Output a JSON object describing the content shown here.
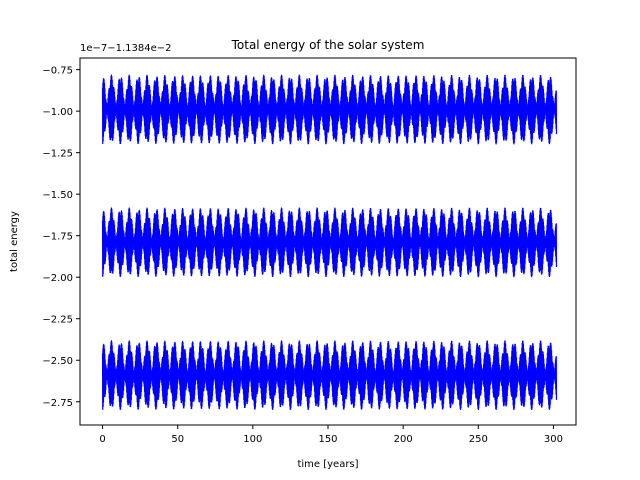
{
  "chart_data": {
    "type": "line",
    "title": "Total energy of the solar system",
    "xlabel": "time [years]",
    "ylabel": "total energy",
    "offset_text": "1e−7−1.1384e−2",
    "xlim": [
      -15,
      315
    ],
    "ylim": [
      -2.89,
      -0.68
    ],
    "xticks": [
      0,
      50,
      100,
      150,
      200,
      250,
      300
    ],
    "yticks": [
      -2.75,
      -2.5,
      -2.25,
      -2.0,
      -1.75,
      -1.5,
      -1.25,
      -1.0,
      -0.75
    ],
    "ytick_labels": [
      "−2.75",
      "−2.50",
      "−2.25",
      "−2.00",
      "−1.75",
      "−1.50",
      "−1.25",
      "−1.00",
      "−0.75"
    ],
    "grid": false,
    "series": [
      {
        "color": "#0000ff",
        "bands": [
          {
            "low": -1.2,
            "high": -0.78
          },
          {
            "low": -2.0,
            "high": -1.58
          },
          {
            "low": -2.8,
            "high": -2.38
          }
        ],
        "x_range": [
          0,
          302
        ],
        "oscillation_period_years": 11.9,
        "end_value_offset": 0.1
      }
    ]
  }
}
